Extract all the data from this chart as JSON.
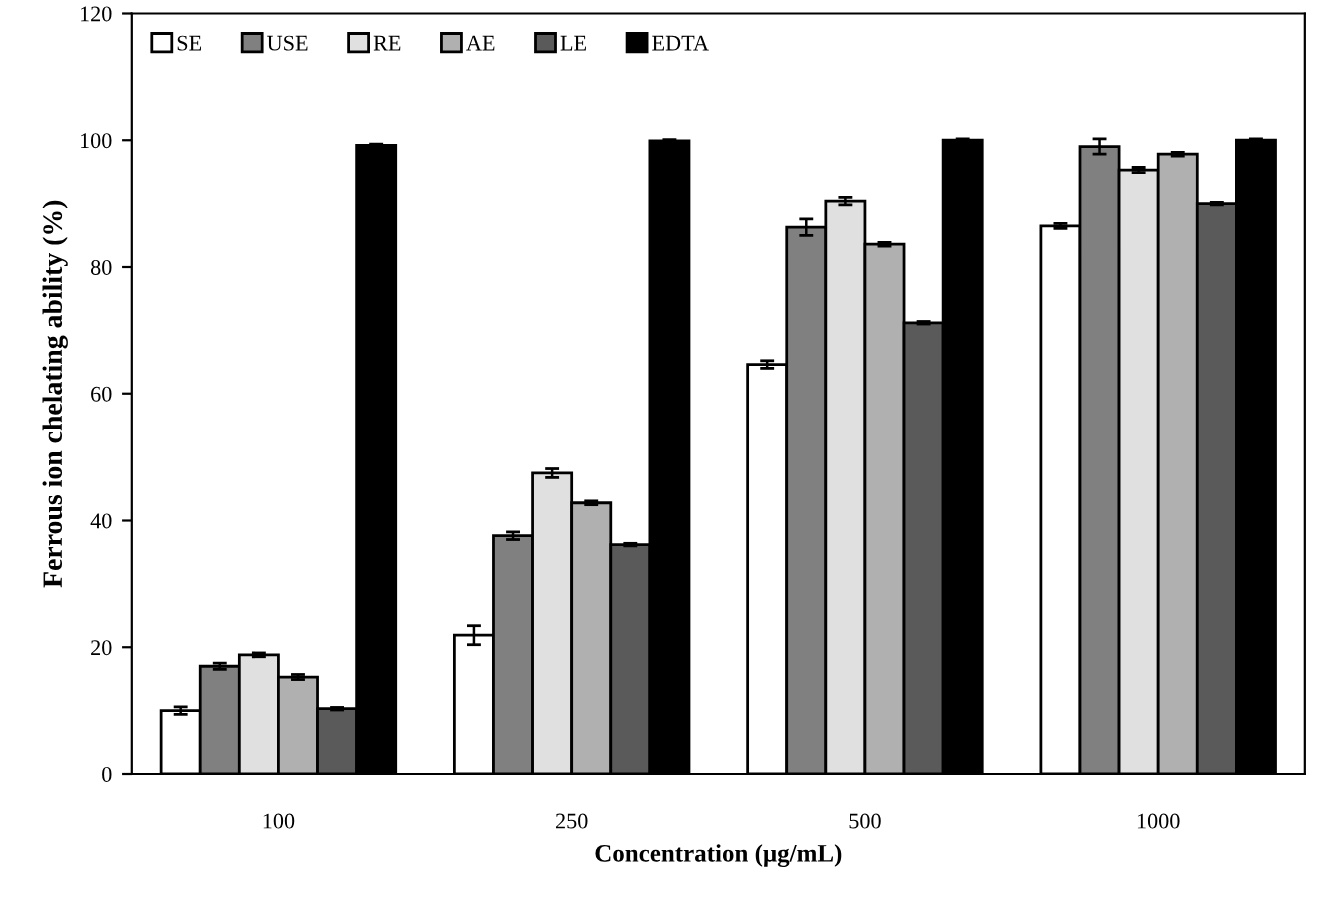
{
  "chart_data": {
    "type": "bar",
    "xlabel": "Concentration (μg/mL)",
    "ylabel": "Ferrous ion chelating ability (%)",
    "categories": [
      "100",
      "250",
      "500",
      "1000"
    ],
    "series": [
      {
        "name": "SE",
        "color": "#ffffff",
        "values": [
          10,
          21.9,
          64.6,
          86.5
        ],
        "errors": [
          0.6,
          1.5,
          0.6,
          0.4
        ]
      },
      {
        "name": "USE",
        "color": "#808080",
        "values": [
          17,
          37.6,
          86.3,
          99
        ],
        "errors": [
          0.5,
          0.6,
          1.3,
          1.2
        ]
      },
      {
        "name": "RE",
        "color": "#e0e0e0",
        "values": [
          18.8,
          47.5,
          90.4,
          95.3
        ],
        "errors": [
          0.3,
          0.7,
          0.6,
          0.4
        ]
      },
      {
        "name": "AE",
        "color": "#b0b0b0",
        "values": [
          15.3,
          42.8,
          83.6,
          97.8
        ],
        "errors": [
          0.4,
          0.3,
          0.3,
          0.3
        ]
      },
      {
        "name": "LE",
        "color": "#5a5a5a",
        "values": [
          10.3,
          36.2,
          71.2,
          90
        ],
        "errors": [
          0.2,
          0.2,
          0.2,
          0.2
        ]
      },
      {
        "name": "EDTA",
        "color": "#000000",
        "values": [
          99.2,
          99.9,
          100,
          100
        ],
        "errors": [
          0.2,
          0.2,
          0.2,
          0.2
        ]
      }
    ],
    "ylim": [
      0,
      120
    ],
    "yticks": [
      0,
      20,
      40,
      60,
      80,
      100,
      120
    ],
    "grid": false,
    "legend": "top left"
  }
}
